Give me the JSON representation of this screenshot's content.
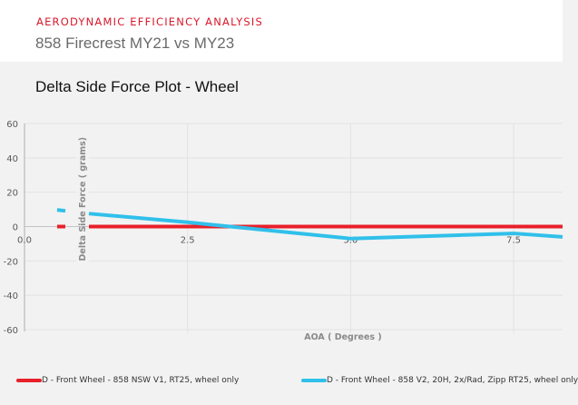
{
  "header": {
    "kicker": "Aerodynamic Efficiency Analysis",
    "subtitle": "858 Firecrest MY21 vs MY23"
  },
  "chart_data": {
    "type": "line",
    "title": "Delta Side Force Plot - Wheel",
    "xlabel": "AOA ( Degrees )",
    "ylabel": "Delta Side Force ( grams)",
    "xlim": [
      0,
      8.25
    ],
    "ylim": [
      -60,
      60
    ],
    "xticks": [
      "0.0",
      "2.5",
      "5.0",
      "7.5"
    ],
    "xtick_values": [
      0,
      2.5,
      5.0,
      7.5
    ],
    "yticks": [
      "60",
      "40",
      "20",
      "0",
      "-20",
      "-40",
      "-60"
    ],
    "ytick_values": [
      60,
      40,
      20,
      0,
      -20,
      -40,
      -60
    ],
    "grid": true,
    "legend_position": "bottom",
    "series": [
      {
        "name": "D - Front Wheel - 858 NSW V1, RT25, wheel only",
        "color": "#e8202a",
        "x": [
          0.5,
          1.0,
          2.5,
          5.0,
          7.5,
          8.25
        ],
        "y": [
          0,
          0,
          0,
          0,
          0,
          0
        ]
      },
      {
        "name": "D - Front Wheel - 858 V2, 20H, 2x/Rad, Zipp RT25, wheel only",
        "color": "#30c0ea",
        "x": [
          0.5,
          1.0,
          2.5,
          5.0,
          7.5,
          8.25
        ],
        "y": [
          9.7,
          7.5,
          2.5,
          -7,
          -4,
          -6
        ]
      }
    ]
  }
}
